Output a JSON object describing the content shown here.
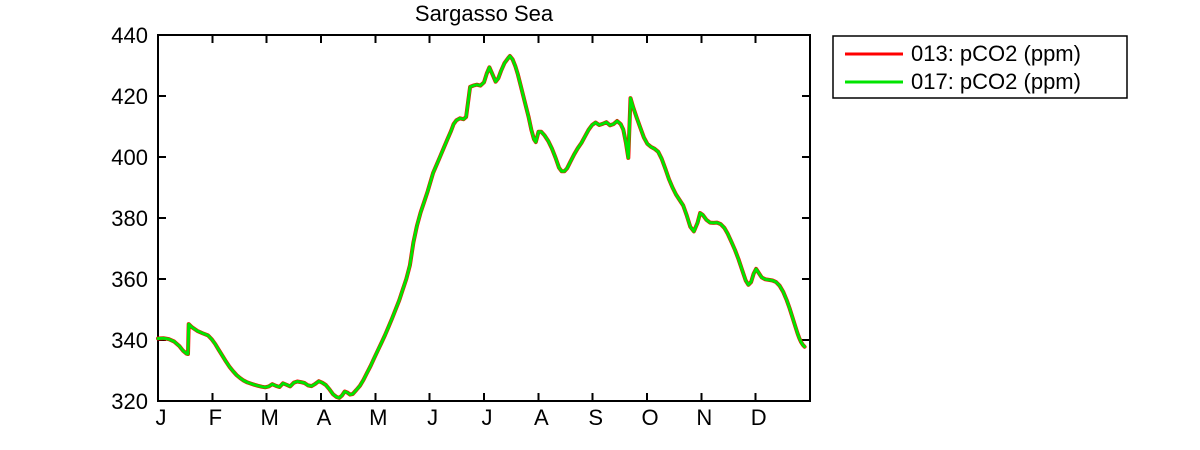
{
  "figure": {
    "background": "#ffffff",
    "axis_color": "#000000"
  },
  "chart_data": {
    "type": "line",
    "title": "Sargasso Sea",
    "xlabel": "",
    "ylabel": "",
    "grid": false,
    "legend_position": "outside-top-right",
    "x_unit": "day_of_year",
    "y_unit": "pCO2 (ppm)",
    "x_tick_labels": [
      "J",
      "F",
      "M",
      "A",
      "M",
      "J",
      "J",
      "A",
      "S",
      "O",
      "N",
      "D"
    ],
    "y_ticks": [
      320,
      340,
      360,
      380,
      400,
      420,
      440
    ],
    "ylim": [
      320,
      440
    ],
    "xlim_days": [
      0,
      365
    ],
    "series": [
      {
        "id": "013",
        "label": "013: pCO2 (ppm)",
        "color": "#ff0000",
        "note": "coincident with series 017, hidden beneath it"
      },
      {
        "id": "017",
        "label": "017: pCO2 (ppm)",
        "color": "#00e400"
      }
    ],
    "points_day_ppm": [
      [
        0,
        340.5
      ],
      [
        3,
        340.6
      ],
      [
        6,
        340.3
      ],
      [
        9,
        339.5
      ],
      [
        12,
        338.0
      ],
      [
        14,
        336.5
      ],
      [
        16,
        335.5
      ],
      [
        16.8,
        335.4
      ],
      [
        17.2,
        345.2
      ],
      [
        19,
        344.2
      ],
      [
        22,
        343.0
      ],
      [
        25,
        342.2
      ],
      [
        28,
        341.5
      ],
      [
        30,
        340.3
      ],
      [
        32,
        338.7
      ],
      [
        34,
        336.8
      ],
      [
        36,
        334.9
      ],
      [
        38,
        333.0
      ],
      [
        40,
        331.2
      ],
      [
        42,
        329.8
      ],
      [
        44,
        328.5
      ],
      [
        46,
        327.5
      ],
      [
        48,
        326.7
      ],
      [
        50,
        326.1
      ],
      [
        52,
        325.7
      ],
      [
        54,
        325.3
      ],
      [
        56,
        325.0
      ],
      [
        58,
        324.7
      ],
      [
        60,
        324.5
      ],
      [
        62,
        324.8
      ],
      [
        64,
        325.5
      ],
      [
        66,
        325.0
      ],
      [
        68,
        324.6
      ],
      [
        70,
        325.8
      ],
      [
        72,
        325.3
      ],
      [
        74,
        324.8
      ],
      [
        76,
        326.0
      ],
      [
        78,
        326.4
      ],
      [
        80,
        326.2
      ],
      [
        82,
        325.9
      ],
      [
        84,
        325.1
      ],
      [
        86,
        324.9
      ],
      [
        88,
        325.6
      ],
      [
        90,
        326.5
      ],
      [
        92,
        326.0
      ],
      [
        94,
        325.2
      ],
      [
        96,
        323.8
      ],
      [
        98,
        322.2
      ],
      [
        100,
        321.3
      ],
      [
        101.5,
        321.0
      ],
      [
        103,
        321.8
      ],
      [
        104.5,
        323.1
      ],
      [
        106,
        322.8
      ],
      [
        107.5,
        322.1
      ],
      [
        109,
        322.3
      ],
      [
        111,
        323.6
      ],
      [
        113,
        325.0
      ],
      [
        115,
        326.9
      ],
      [
        117,
        329.2
      ],
      [
        119,
        331.5
      ],
      [
        121,
        334.0
      ],
      [
        123,
        336.5
      ],
      [
        125,
        339.0
      ],
      [
        127,
        341.5
      ],
      [
        129,
        344.2
      ],
      [
        131,
        347.0
      ],
      [
        133,
        350.0
      ],
      [
        135,
        353.0
      ],
      [
        137,
        356.5
      ],
      [
        139,
        360.0
      ],
      [
        141,
        364.5
      ],
      [
        143,
        372.0
      ],
      [
        145,
        377.5
      ],
      [
        147,
        381.8
      ],
      [
        149,
        385.3
      ],
      [
        151,
        388.8
      ],
      [
        154,
        394.8
      ],
      [
        156,
        397.5
      ],
      [
        158,
        400.2
      ],
      [
        160,
        403.0
      ],
      [
        162,
        405.8
      ],
      [
        164,
        408.5
      ],
      [
        165.5,
        410.8
      ],
      [
        167,
        412.0
      ],
      [
        169,
        412.7
      ],
      [
        171,
        412.4
      ],
      [
        172.5,
        413.1
      ],
      [
        174.7,
        423.0
      ],
      [
        176.5,
        423.4
      ],
      [
        178.5,
        423.7
      ],
      [
        180.5,
        423.4
      ],
      [
        182.5,
        424.5
      ],
      [
        184,
        427.3
      ],
      [
        185.5,
        429.4
      ],
      [
        187.5,
        426.8
      ],
      [
        189,
        424.7
      ],
      [
        190.5,
        425.8
      ],
      [
        192,
        428.2
      ],
      [
        194,
        430.8
      ],
      [
        196,
        432.4
      ],
      [
        197,
        433.1
      ],
      [
        198.5,
        432.0
      ],
      [
        200,
        429.8
      ],
      [
        201.5,
        427.0
      ],
      [
        203,
        423.5
      ],
      [
        204.5,
        420.0
      ],
      [
        206,
        416.5
      ],
      [
        207.5,
        413.0
      ],
      [
        209,
        409.0
      ],
      [
        210.5,
        405.8
      ],
      [
        211.5,
        404.9
      ],
      [
        213,
        408.3
      ],
      [
        214.5,
        408.3
      ],
      [
        216.5,
        407.0
      ],
      [
        218.5,
        405.2
      ],
      [
        220.5,
        402.8
      ],
      [
        222.5,
        399.8
      ],
      [
        224.5,
        396.5
      ],
      [
        226,
        395.3
      ],
      [
        227.5,
        395.3
      ],
      [
        229,
        396.3
      ],
      [
        231,
        398.6
      ],
      [
        233,
        400.9
      ],
      [
        235,
        402.9
      ],
      [
        237,
        404.6
      ],
      [
        239,
        406.7
      ],
      [
        241,
        408.9
      ],
      [
        243,
        410.5
      ],
      [
        245,
        411.3
      ],
      [
        247,
        410.5
      ],
      [
        249,
        410.9
      ],
      [
        251,
        411.4
      ],
      [
        253,
        410.4
      ],
      [
        255,
        410.8
      ],
      [
        257,
        411.8
      ],
      [
        259,
        410.8
      ],
      [
        260.5,
        409.0
      ],
      [
        262,
        404.5
      ],
      [
        263.3,
        399.7
      ],
      [
        264.5,
        419.3
      ],
      [
        266,
        416.3
      ],
      [
        268,
        412.9
      ],
      [
        270,
        409.6
      ],
      [
        272,
        406.4
      ],
      [
        274,
        404.3
      ],
      [
        276,
        403.3
      ],
      [
        278,
        402.7
      ],
      [
        280,
        401.7
      ],
      [
        282,
        399.4
      ],
      [
        284,
        396.2
      ],
      [
        286,
        392.8
      ],
      [
        288,
        390.0
      ],
      [
        290,
        387.7
      ],
      [
        292,
        385.9
      ],
      [
        294,
        384.1
      ],
      [
        296,
        380.9
      ],
      [
        298,
        377.1
      ],
      [
        300,
        375.6
      ],
      [
        302,
        378.4
      ],
      [
        303.5,
        381.6
      ],
      [
        305,
        381.0
      ],
      [
        307,
        379.4
      ],
      [
        309,
        378.5
      ],
      [
        311,
        378.4
      ],
      [
        313,
        378.5
      ],
      [
        315,
        378.0
      ],
      [
        317,
        376.8
      ],
      [
        319,
        374.8
      ],
      [
        321,
        372.2
      ],
      [
        323,
        369.5
      ],
      [
        325,
        366.5
      ],
      [
        327,
        363.0
      ],
      [
        329,
        359.5
      ],
      [
        330.5,
        358.1
      ],
      [
        332,
        359.0
      ],
      [
        333.5,
        361.8
      ],
      [
        334.8,
        363.3
      ],
      [
        336.5,
        361.8
      ],
      [
        338,
        360.5
      ],
      [
        340,
        359.9
      ],
      [
        342,
        359.7
      ],
      [
        344,
        359.5
      ],
      [
        346,
        359.0
      ],
      [
        348,
        357.8
      ],
      [
        350,
        355.8
      ],
      [
        352,
        353.0
      ],
      [
        353.5,
        350.5
      ],
      [
        355,
        347.8
      ],
      [
        356.5,
        345.0
      ],
      [
        358,
        342.2
      ],
      [
        359,
        340.6
      ],
      [
        360,
        339.3
      ],
      [
        361,
        338.4
      ],
      [
        362,
        337.8
      ]
    ]
  }
}
